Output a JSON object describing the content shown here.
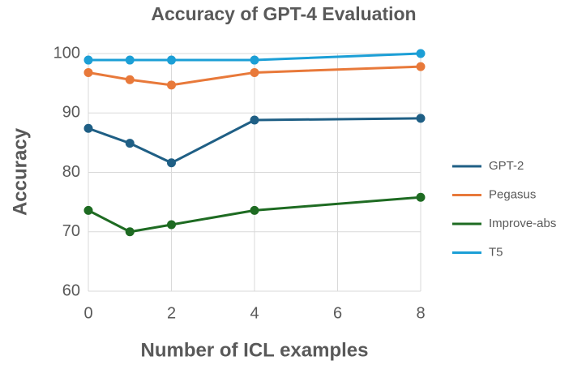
{
  "chart_data": {
    "type": "line",
    "title": "Accuracy of GPT-4 Evaluation",
    "x_label": "Number of ICL examples",
    "y_label": "Accuracy",
    "x": [
      0,
      1,
      2,
      4,
      8
    ],
    "series": [
      {
        "name": "GPT-2",
        "color": "#1f5f85",
        "values": [
          87.4,
          84.9,
          81.6,
          88.8,
          89.1
        ]
      },
      {
        "name": "Pegasus",
        "color": "#e8793a",
        "values": [
          96.8,
          95.6,
          94.7,
          96.8,
          97.8
        ]
      },
      {
        "name": "Improve-abs",
        "color": "#1e6b22",
        "values": [
          73.6,
          70.0,
          71.2,
          73.6,
          75.8
        ]
      },
      {
        "name": "T5",
        "color": "#1c9fd6",
        "values": [
          98.9,
          98.9,
          98.9,
          98.9,
          100.0
        ]
      }
    ],
    "xlim": [
      0,
      8
    ],
    "xticks": [
      0,
      2,
      4,
      6,
      8
    ],
    "ylim": [
      60,
      100
    ],
    "yticks": [
      60,
      70,
      80,
      90,
      100
    ],
    "grid": true,
    "legend": "right"
  }
}
